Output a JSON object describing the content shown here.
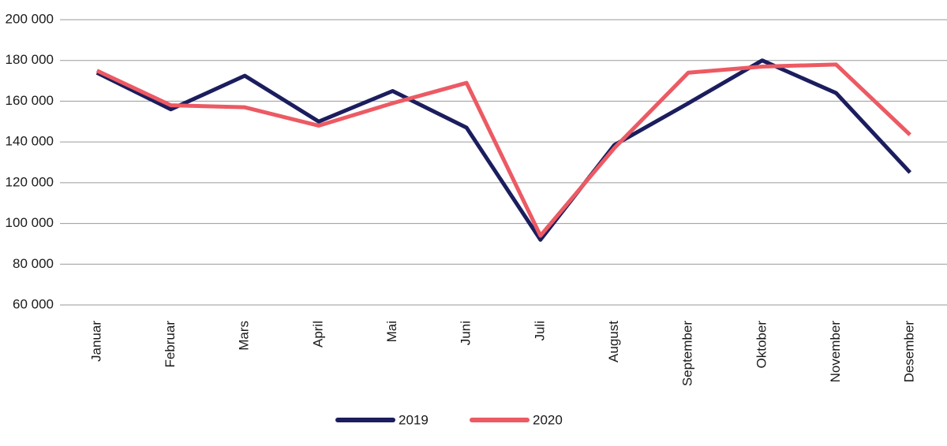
{
  "chart_data": {
    "type": "line",
    "categories": [
      "Januar",
      "Februar",
      "Mars",
      "April",
      "Mai",
      "Juni",
      "Juli",
      "August",
      "September",
      "Oktober",
      "November",
      "Desember"
    ],
    "series": [
      {
        "name": "2019",
        "color": "#1b1d5e",
        "values": [
          174000,
          156000,
          172500,
          150000,
          165000,
          147000,
          92000,
          138500,
          159000,
          180000,
          164000,
          125000
        ]
      },
      {
        "name": "2020",
        "color": "#ec5a63",
        "values": [
          175000,
          158000,
          157000,
          148000,
          159000,
          169000,
          94000,
          137000,
          174000,
          177000,
          178000,
          143500
        ]
      }
    ],
    "ylim": [
      60000,
      200000
    ],
    "yticks": [
      {
        "value": 60000,
        "label": "60 000"
      },
      {
        "value": 80000,
        "label": "80 000"
      },
      {
        "value": 100000,
        "label": "100 000"
      },
      {
        "value": 120000,
        "label": "120 000"
      },
      {
        "value": 140000,
        "label": "140 000"
      },
      {
        "value": 160000,
        "label": "160 000"
      },
      {
        "value": 180000,
        "label": "180 000"
      },
      {
        "value": 200000,
        "label": "200 000"
      }
    ],
    "grid": true
  }
}
